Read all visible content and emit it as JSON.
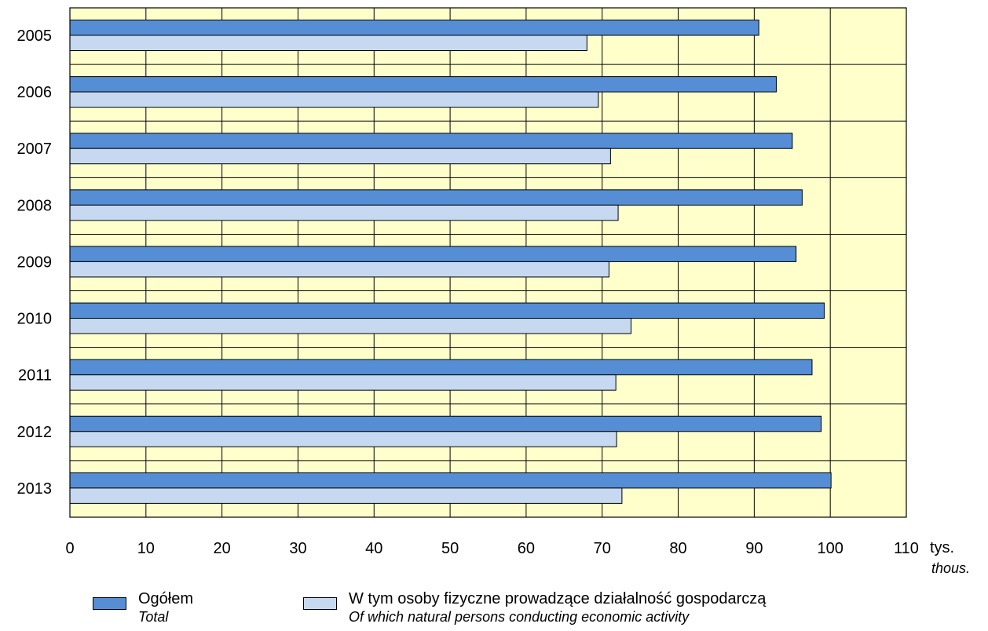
{
  "chart_data": {
    "type": "bar",
    "orientation": "horizontal",
    "categories": [
      "2005",
      "2006",
      "2007",
      "2008",
      "2009",
      "2010",
      "2011",
      "2012",
      "2013"
    ],
    "series": [
      {
        "name": "Ogółem",
        "name_en": "Total",
        "color": "#558ed5",
        "values": [
          90.6,
          92.9,
          95.0,
          96.3,
          95.5,
          99.2,
          97.6,
          98.8,
          100.1
        ]
      },
      {
        "name": "W tym osoby fizyczne prowadzące działalność gospodarczą",
        "name_en": "Of which natural persons conducting economic activity",
        "color": "#c6d9f1",
        "values": [
          68.0,
          69.5,
          71.1,
          72.1,
          70.9,
          73.8,
          71.8,
          71.9,
          72.6
        ]
      }
    ],
    "xlim": [
      0,
      110
    ],
    "xticks": [
      "0",
      "10",
      "20",
      "30",
      "40",
      "50",
      "60",
      "70",
      "80",
      "90",
      "100",
      "110"
    ],
    "xunit": "tys.",
    "xunit_en": "thous.",
    "grid": true,
    "plot_background": "#ffffcc",
    "legend_position": "bottom"
  }
}
